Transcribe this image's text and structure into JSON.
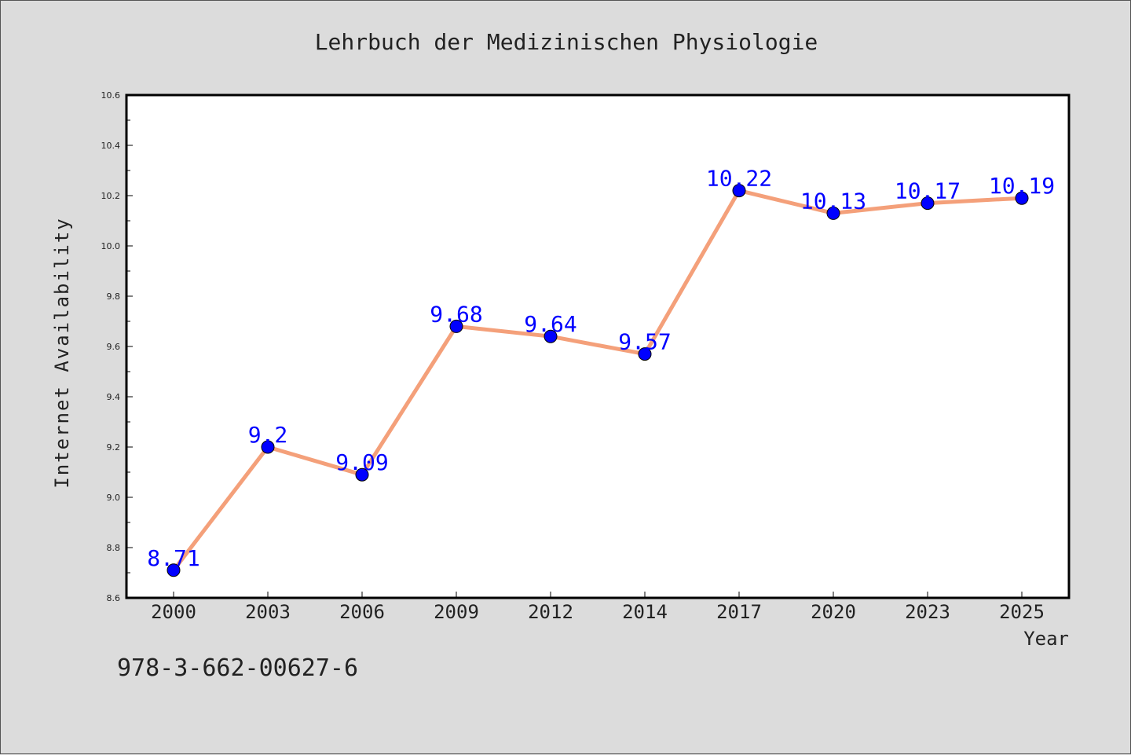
{
  "footer": {
    "code": "978-3-662-00627-6"
  },
  "colors": {
    "background": "#dcdcdc",
    "plot_background": "#ffffff",
    "line": "#f4a07a",
    "marker": "#0000ff",
    "data_label": "#0000ff",
    "text": "#222222"
  },
  "chart_data": {
    "type": "line",
    "title": "Lehrbuch der Medizinischen Physiologie",
    "xlabel": "Year",
    "ylabel": "Internet Availability",
    "categories": [
      "2000",
      "2003",
      "2006",
      "2009",
      "2012",
      "2014",
      "2017",
      "2020",
      "2023",
      "2025"
    ],
    "series": [
      {
        "values": [
          8.71,
          9.2,
          9.09,
          9.68,
          9.64,
          9.57,
          10.22,
          10.13,
          10.17,
          10.19
        ]
      }
    ],
    "data_labels": [
      "8.71",
      "9.2",
      "9.09",
      "9.68",
      "9.64",
      "9.57",
      "10.22",
      "10.13",
      "10.17",
      "10.19"
    ],
    "ylim": [
      8.6,
      10.6
    ],
    "yticks": [
      "8.6",
      "8.8",
      "9.0",
      "9.2",
      "9.4",
      "9.6",
      "9.8",
      "10.0",
      "10.2",
      "10.4",
      "10.6"
    ],
    "grid": false,
    "legend": "none"
  }
}
